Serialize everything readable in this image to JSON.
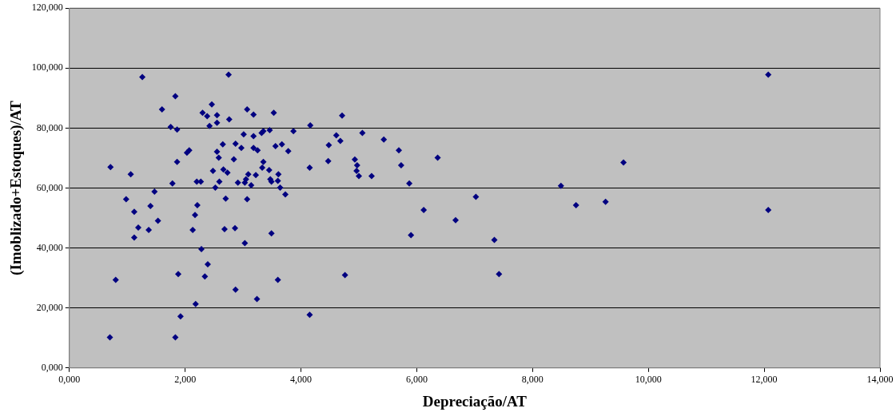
{
  "chart_data": {
    "type": "scatter",
    "xlabel": "Depreciação/AT",
    "ylabel": "(Imoblizado+Estoques)/AT",
    "xlim": [
      0,
      14
    ],
    "ylim": [
      0,
      120
    ],
    "xticks": [
      {
        "value": 0,
        "label": "0,000"
      },
      {
        "value": 2,
        "label": "2,000"
      },
      {
        "value": 4,
        "label": "4,000"
      },
      {
        "value": 6,
        "label": "6,000"
      },
      {
        "value": 8,
        "label": "8,000"
      },
      {
        "value": 10,
        "label": "10,000"
      },
      {
        "value": 12,
        "label": "12,000"
      },
      {
        "value": 14,
        "label": "14,000"
      }
    ],
    "yticks": [
      {
        "value": 0,
        "label": "0,000"
      },
      {
        "value": 20,
        "label": "20,000"
      },
      {
        "value": 40,
        "label": "40,000"
      },
      {
        "value": 60,
        "label": "60,000"
      },
      {
        "value": 80,
        "label": "80,000"
      },
      {
        "value": 100,
        "label": "100,000"
      },
      {
        "value": 120,
        "label": "120,000"
      }
    ],
    "grid": "y",
    "legend": false,
    "marker": "diamond",
    "series": [
      {
        "color": "#000080",
        "x": [
          0.7,
          0.71,
          0.8,
          0.98,
          1.06,
          1.12,
          1.12,
          1.19,
          1.26,
          1.4,
          1.37,
          1.47,
          1.53,
          1.6,
          1.75,
          1.78,
          1.83,
          1.86,
          1.86,
          1.88,
          1.83,
          1.92,
          2.03,
          2.07,
          2.13,
          2.17,
          2.18,
          2.2,
          2.21,
          2.27,
          2.28,
          2.3,
          2.34,
          2.38,
          2.39,
          2.42,
          2.46,
          2.48,
          2.52,
          2.55,
          2.55,
          2.55,
          2.58,
          2.59,
          2.65,
          2.66,
          2.68,
          2.7,
          2.73,
          2.75,
          2.76,
          2.84,
          2.87,
          2.86,
          2.87,
          3.07,
          3.18,
          3.53,
          4.71,
          4.16,
          3.01,
          3.18,
          3.32,
          3.35,
          3.46,
          3.87,
          4.61,
          4.68,
          5.06,
          5.43,
          2.97,
          3.18,
          3.25,
          3.56,
          3.67,
          3.78,
          4.48,
          3.35,
          4.15,
          4.47,
          4.93,
          4.97,
          4.96,
          5.0,
          5.22,
          3.33,
          3.45,
          3.22,
          3.09,
          3.05,
          3.03,
          2.91,
          3.14,
          3.47,
          3.49,
          3.61,
          3.6,
          3.64,
          3.73,
          3.07,
          3.49,
          3.03,
          3.6,
          4.76,
          3.24,
          4.15,
          5.69,
          5.73,
          6.36,
          5.87,
          8.49,
          9.57,
          7.02,
          6.12,
          8.75,
          9.26,
          6.67,
          5.9,
          7.34,
          7.42,
          12.07,
          12.07
        ],
        "values": [
          10.2,
          67.0,
          29.4,
          56.3,
          64.6,
          52.1,
          43.5,
          46.8,
          97.0,
          54.0,
          46.0,
          58.8,
          49.1,
          86.2,
          80.4,
          61.5,
          90.6,
          79.5,
          68.7,
          31.3,
          10.2,
          17.2,
          71.8,
          72.6,
          46.0,
          51.0,
          21.3,
          62.1,
          54.3,
          62.1,
          39.6,
          85.1,
          30.5,
          84.0,
          34.6,
          80.7,
          87.9,
          65.7,
          60.1,
          72.1,
          84.3,
          81.8,
          70.1,
          62.1,
          74.6,
          66.2,
          46.3,
          56.5,
          65.1,
          97.8,
          82.9,
          69.6,
          74.8,
          46.6,
          26.1,
          86.2,
          84.5,
          85.1,
          84.2,
          80.9,
          77.9,
          77.3,
          78.4,
          79.0,
          79.3,
          79.0,
          77.6,
          75.7,
          78.4,
          76.2,
          73.4,
          73.4,
          72.6,
          74.0,
          74.6,
          72.3,
          74.3,
          68.7,
          66.8,
          69.0,
          69.5,
          67.6,
          65.7,
          64.0,
          64.0,
          66.8,
          66.0,
          64.3,
          64.6,
          62.9,
          61.8,
          61.8,
          60.9,
          62.9,
          62.1,
          64.6,
          62.4,
          60.1,
          57.9,
          56.3,
          44.9,
          41.6,
          29.4,
          31.0,
          23.0,
          17.7,
          72.6,
          67.6,
          70.1,
          61.5,
          60.7,
          68.5,
          57.1,
          52.7,
          54.3,
          55.4,
          49.3,
          44.3,
          42.7,
          31.3,
          97.8,
          52.7
        ]
      }
    ]
  }
}
